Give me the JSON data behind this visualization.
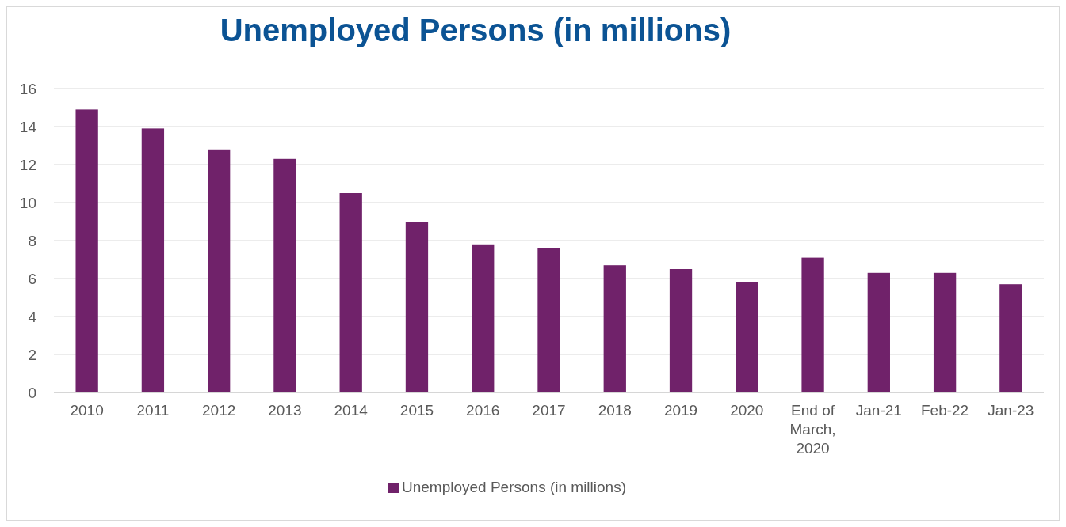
{
  "chart_data": {
    "type": "bar",
    "title": "Unemployed Persons (in millions)",
    "categories": [
      "2010",
      "2011",
      "2012",
      "2013",
      "2014",
      "2015",
      "2016",
      "2017",
      "2018",
      "2019",
      "2020",
      "End of March, 2020",
      "Jan-21",
      "Feb-22",
      "Jan-23"
    ],
    "series": [
      {
        "name": "Unemployed Persons (in millions)",
        "color": "#70226a",
        "values": [
          14.9,
          13.9,
          12.8,
          12.3,
          10.5,
          9.0,
          7.8,
          7.6,
          6.7,
          6.5,
          5.8,
          7.1,
          6.3,
          6.3,
          5.7
        ]
      }
    ],
    "ylim": [
      0,
      16
    ],
    "yticks": [
      0,
      2,
      4,
      6,
      8,
      10,
      12,
      14,
      16
    ],
    "grid": "y",
    "legend": "bottom"
  }
}
